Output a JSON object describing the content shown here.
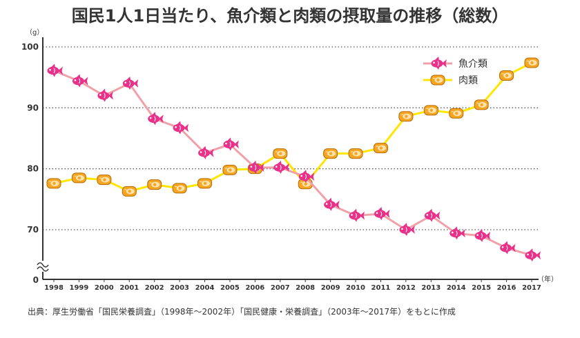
{
  "chart_data": {
    "type": "line",
    "title": "国民1人1日当たり、魚介類と肉類の摂取量の推移（総数）",
    "y_unit": "（g）",
    "x_unit": "（年）",
    "ylim": [
      0,
      100
    ],
    "axis_break": true,
    "y_ticks": [
      "100",
      "90",
      "80",
      "70",
      "0"
    ],
    "categories": [
      "1998",
      "1999",
      "2000",
      "2001",
      "2002",
      "2003",
      "2004",
      "2005",
      "2006",
      "2007",
      "2008",
      "2009",
      "2010",
      "2011",
      "2012",
      "2013",
      "2014",
      "2015",
      "2016",
      "2017"
    ],
    "series": [
      {
        "name": "魚介類",
        "color": "#f0a0a8",
        "marker": "fish-icon",
        "marker_color": "#e8328a",
        "values": [
          96.1,
          94.4,
          92.0,
          94.0,
          88.2,
          86.7,
          82.6,
          84.0,
          80.2,
          80.2,
          78.7,
          74.1,
          72.3,
          72.6,
          70.0,
          72.3,
          69.4,
          69.0,
          67.0,
          65.8
        ]
      },
      {
        "name": "肉類",
        "color": "#ffe600",
        "marker": "meat-icon",
        "marker_color": "#f5a623",
        "values": [
          77.6,
          78.5,
          78.2,
          76.3,
          77.4,
          76.8,
          77.6,
          79.8,
          80.0,
          82.5,
          77.5,
          82.5,
          82.5,
          83.4,
          88.6,
          89.6,
          89.1,
          90.5,
          95.3,
          97.4
        ]
      }
    ],
    "grid": true,
    "legend_position": "top-right"
  },
  "source_note": "出典：厚生労働省「国民栄養調査」（1998年〜2002年）「国民健康・栄養調査」（2003年〜2017年）をもとに作成"
}
